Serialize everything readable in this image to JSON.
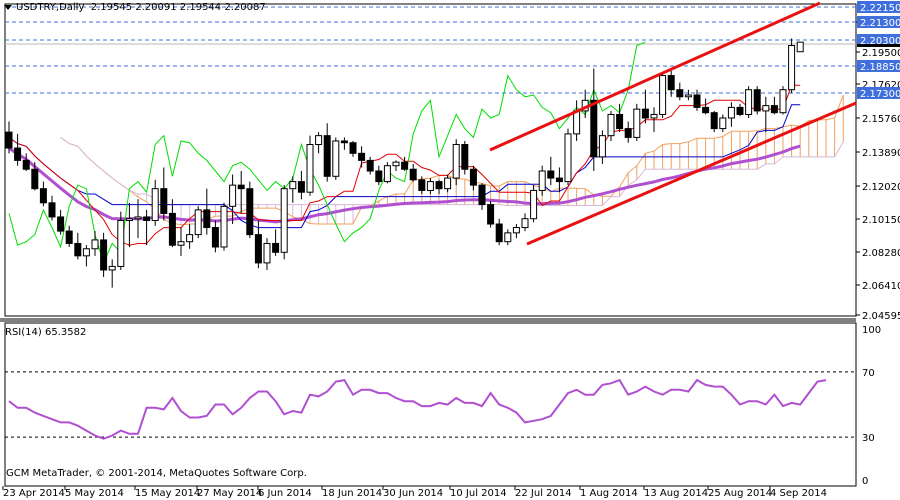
{
  "header": {
    "symbol": "USDTRY,Daily",
    "ohlc": "2.19545 2.20091 2.19544 2.20087"
  },
  "rsi_panel": {
    "label": "RSI(14) 65.3582"
  },
  "footer": {
    "copyright": "GCM MetaTrader, © 2001-2014, MetaQuotes Software Corp."
  },
  "colors": {
    "level_line": "#3F6FDC",
    "level_label_bg": "#3F6FDC",
    "tenkan": "#E00000",
    "kijun": "#0000CC",
    "chikou": "#00DD00",
    "senkou_a": "#F0A060",
    "senkou_b": "#D8B8D8",
    "ma": "#B050D0",
    "channel": "#E81010",
    "rsi": "#B050D0"
  },
  "chart_data": [
    {
      "type": "candlestick",
      "title": "USDTRY,Daily",
      "subtitle": "2.19545 2.20091 2.19544 2.20087",
      "xlabel": "",
      "ylabel": "",
      "ylim": [
        2.04595,
        2.2225
      ],
      "grid": false,
      "price_ticks": [
        "2.21300",
        "2.19500",
        "2.17620",
        "2.15760",
        "2.13890",
        "2.12020",
        "2.10150",
        "2.08280",
        "2.06410",
        "2.04595"
      ],
      "level_labels": [
        "2.22150",
        "2.21300",
        "2.20300",
        "2.18850",
        "2.17300"
      ],
      "current_price": "2.20087",
      "x_tick_labels": [
        "23 Apr 2014",
        "5 May 2014",
        "15 May 2014",
        "27 May 2014",
        "6 Jun 2014",
        "18 Jun 2014",
        "30 Jun 2014",
        "10 Jul 2014",
        "22 Jul 2014",
        "1 Aug 2014",
        "13 Aug 2014",
        "25 Aug 2014",
        "4 Sep 2014"
      ],
      "indicators": [
        "Ichimoku (Tenkan, Kijun, Chikou, Senkou A/B cloud)",
        "Moving Average",
        "Ascending channel (trend lines)"
      ],
      "candles": [
        [
          2.15,
          2.156,
          2.138,
          2.141
        ],
        [
          2.141,
          2.149,
          2.131,
          2.134
        ],
        [
          2.134,
          2.138,
          2.128,
          2.129
        ],
        [
          2.129,
          2.133,
          2.117,
          2.118
        ],
        [
          2.118,
          2.122,
          2.108,
          2.11
        ],
        [
          2.11,
          2.114,
          2.1,
          2.102
        ],
        [
          2.102,
          2.106,
          2.092,
          2.094
        ],
        [
          2.094,
          2.097,
          2.085,
          2.087
        ],
        [
          2.087,
          2.093,
          2.078,
          2.08
        ],
        [
          2.08,
          2.086,
          2.074,
          2.084
        ],
        [
          2.084,
          2.094,
          2.08,
          2.089
        ],
        [
          2.089,
          2.093,
          2.068,
          2.072
        ],
        [
          2.072,
          2.078,
          2.062,
          2.074
        ],
        [
          2.074,
          2.105,
          2.072,
          2.1
        ],
        [
          2.1,
          2.11,
          2.085,
          2.101
        ],
        [
          2.101,
          2.112,
          2.09,
          2.102
        ],
        [
          2.102,
          2.106,
          2.086,
          2.1
        ],
        [
          2.1,
          2.123,
          2.097,
          2.118
        ],
        [
          2.118,
          2.13,
          2.1,
          2.104
        ],
        [
          2.104,
          2.112,
          2.085,
          2.086
        ],
        [
          2.086,
          2.096,
          2.08,
          2.088
        ],
        [
          2.088,
          2.098,
          2.084,
          2.092
        ],
        [
          2.092,
          2.108,
          2.09,
          2.106
        ],
        [
          2.106,
          2.118,
          2.092,
          2.096
        ],
        [
          2.096,
          2.1,
          2.082,
          2.085
        ],
        [
          2.085,
          2.11,
          2.083,
          2.108
        ],
        [
          2.108,
          2.126,
          2.098,
          2.12
        ],
        [
          2.12,
          2.128,
          2.104,
          2.118
        ],
        [
          2.118,
          2.122,
          2.09,
          2.092
        ],
        [
          2.092,
          2.1,
          2.073,
          2.076
        ],
        [
          2.076,
          2.09,
          2.072,
          2.087
        ],
        [
          2.087,
          2.095,
          2.08,
          2.082
        ],
        [
          2.082,
          2.12,
          2.078,
          2.118
        ],
        [
          2.118,
          2.125,
          2.11,
          2.122
        ],
        [
          2.122,
          2.128,
          2.112,
          2.116
        ],
        [
          2.116,
          2.148,
          2.114,
          2.143
        ],
        [
          2.143,
          2.15,
          2.138,
          2.148
        ],
        [
          2.148,
          2.155,
          2.122,
          2.125
        ],
        [
          2.125,
          2.147,
          2.123,
          2.145
        ],
        [
          2.145,
          2.147,
          2.14,
          2.144
        ],
        [
          2.144,
          2.145,
          2.136,
          2.138
        ],
        [
          2.138,
          2.142,
          2.13,
          2.134
        ],
        [
          2.134,
          2.136,
          2.126,
          2.128
        ],
        [
          2.128,
          2.131,
          2.12,
          2.122
        ],
        [
          2.122,
          2.133,
          2.121,
          2.131
        ],
        [
          2.131,
          2.134,
          2.128,
          2.133
        ],
        [
          2.133,
          2.136,
          2.128,
          2.129
        ],
        [
          2.129,
          2.132,
          2.122,
          2.123
        ],
        [
          2.123,
          2.125,
          2.115,
          2.117
        ],
        [
          2.117,
          2.124,
          2.115,
          2.122
        ],
        [
          2.122,
          2.123,
          2.115,
          2.118
        ],
        [
          2.118,
          2.126,
          2.116,
          2.124
        ],
        [
          2.124,
          2.146,
          2.12,
          2.143
        ],
        [
          2.143,
          2.145,
          2.126,
          2.129
        ],
        [
          2.129,
          2.131,
          2.117,
          2.12
        ],
        [
          2.12,
          2.121,
          2.106,
          2.109
        ],
        [
          2.109,
          2.111,
          2.096,
          2.098
        ],
        [
          2.098,
          2.101,
          2.086,
          2.088
        ],
        [
          2.088,
          2.095,
          2.086,
          2.093
        ],
        [
          2.093,
          2.098,
          2.09,
          2.096
        ],
        [
          2.096,
          2.104,
          2.094,
          2.101
        ],
        [
          2.101,
          2.12,
          2.099,
          2.117
        ],
        [
          2.117,
          2.131,
          2.114,
          2.128
        ],
        [
          2.128,
          2.136,
          2.12,
          2.124
        ],
        [
          2.124,
          2.13,
          2.116,
          2.122
        ],
        [
          2.122,
          2.152,
          2.12,
          2.149
        ],
        [
          2.149,
          2.168,
          2.145,
          2.162
        ],
        [
          2.162,
          2.174,
          2.158,
          2.168
        ],
        [
          2.168,
          2.186,
          2.128,
          2.136
        ],
        [
          2.136,
          2.151,
          2.132,
          2.148
        ],
        [
          2.148,
          2.162,
          2.145,
          2.16
        ],
        [
          2.16,
          2.166,
          2.15,
          2.152
        ],
        [
          2.152,
          2.156,
          2.144,
          2.147
        ],
        [
          2.147,
          2.166,
          2.145,
          2.163
        ],
        [
          2.163,
          2.174,
          2.155,
          2.158
        ],
        [
          2.158,
          2.164,
          2.15,
          2.16
        ],
        [
          2.16,
          2.184,
          2.158,
          2.182
        ],
        [
          2.182,
          2.186,
          2.17,
          2.174
        ],
        [
          2.174,
          2.178,
          2.168,
          2.17
        ],
        [
          2.17,
          2.174,
          2.168,
          2.171
        ],
        [
          2.171,
          2.174,
          2.162,
          2.164
        ],
        [
          2.164,
          2.169,
          2.16,
          2.161
        ],
        [
          2.161,
          2.162,
          2.15,
          2.152
        ],
        [
          2.152,
          2.16,
          2.15,
          2.158
        ],
        [
          2.158,
          2.167,
          2.153,
          2.164
        ],
        [
          2.164,
          2.166,
          2.159,
          2.16
        ],
        [
          2.16,
          2.176,
          2.158,
          2.174
        ],
        [
          2.174,
          2.176,
          2.16,
          2.162
        ],
        [
          2.162,
          2.17,
          2.15,
          2.165
        ],
        [
          2.165,
          2.17,
          2.16,
          2.161
        ],
        [
          2.161,
          2.176,
          2.16,
          2.174
        ],
        [
          2.174,
          2.203,
          2.172,
          2.199
        ],
        [
          2.1955,
          2.2009,
          2.1954,
          2.2009
        ]
      ]
    },
    {
      "type": "line",
      "title": "RSI(14) 65.3582",
      "ylim": [
        0,
        100
      ],
      "y_ticks": [
        100,
        70,
        30,
        0
      ],
      "levels": [
        70,
        30
      ],
      "values": [
        52,
        48,
        48,
        45,
        43,
        41,
        39,
        39,
        37,
        34,
        31,
        29,
        31,
        34,
        32,
        32,
        48,
        48,
        47,
        54,
        46,
        42,
        42,
        43,
        50,
        50,
        44,
        48,
        54,
        58,
        58,
        52,
        44,
        46,
        45,
        56,
        55,
        58,
        64,
        65,
        56,
        59,
        59,
        57,
        57,
        54,
        52,
        52,
        49,
        49,
        51,
        50,
        54,
        51,
        51,
        49,
        57,
        50,
        48,
        45,
        39,
        40,
        41,
        43,
        50,
        57,
        59,
        56,
        56,
        62,
        63,
        65,
        56,
        58,
        61,
        58,
        56,
        59,
        59,
        58,
        65,
        62,
        61,
        61,
        56,
        50,
        52,
        52,
        50,
        56,
        49,
        51,
        50,
        57,
        64,
        65
      ]
    }
  ]
}
